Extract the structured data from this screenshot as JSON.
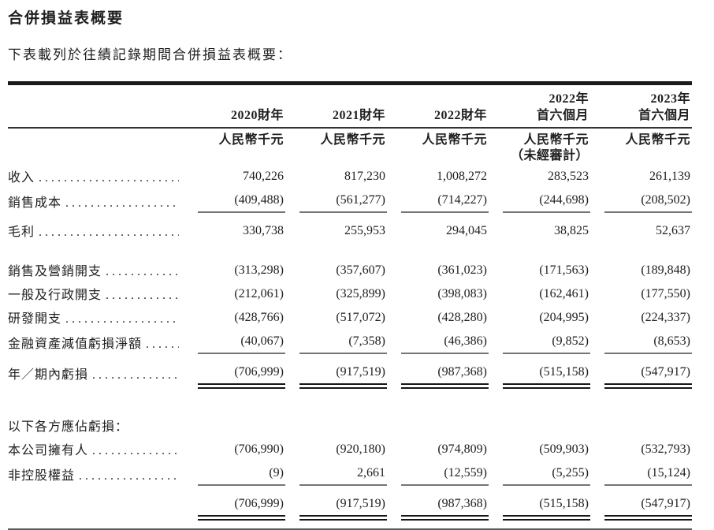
{
  "page": {
    "title": "合併損益表概要",
    "intro": "下表載列於往績記錄期間合併損益表概要："
  },
  "table": {
    "leader_dots": ". . . . . . . . . . . . . . . . . . . . . . . . . . . . . . . . . . . .",
    "columns": [
      {
        "line1": "",
        "line2": "2020財年",
        "unit": "人民幣千元",
        "note": ""
      },
      {
        "line1": "",
        "line2": "2021財年",
        "unit": "人民幣千元",
        "note": ""
      },
      {
        "line1": "",
        "line2": "2022財年",
        "unit": "人民幣千元",
        "note": ""
      },
      {
        "line1": "2022年",
        "line2": "首六個月",
        "unit": "人民幣千元",
        "note": "（未經審計）"
      },
      {
        "line1": "2023年",
        "line2": "首六個月",
        "unit": "人民幣千元",
        "note": ""
      }
    ],
    "rows": [
      {
        "label": "收入",
        "values": [
          "740,226",
          "817,230",
          "1,008,272",
          "283,523",
          "261,139"
        ]
      },
      {
        "label": "銷售成本",
        "values": [
          "(409,488)",
          "(561,277)",
          "(714,227)",
          "(244,698)",
          "(208,502)"
        ]
      },
      {
        "label": "毛利",
        "values": [
          "330,738",
          "255,953",
          "294,045",
          "38,825",
          "52,637"
        ]
      },
      {
        "label": "銷售及營銷開支",
        "values": [
          "(313,298)",
          "(357,607)",
          "(361,023)",
          "(171,563)",
          "(189,848)"
        ]
      },
      {
        "label": "一般及行政開支",
        "values": [
          "(212,061)",
          "(325,899)",
          "(398,083)",
          "(162,461)",
          "(177,550)"
        ]
      },
      {
        "label": "研發開支",
        "values": [
          "(428,766)",
          "(517,072)",
          "(428,280)",
          "(204,995)",
          "(224,337)"
        ]
      },
      {
        "label": "金融資產減值虧損淨額",
        "values": [
          "(40,067)",
          "(7,358)",
          "(46,386)",
          "(9,852)",
          "(8,653)"
        ]
      },
      {
        "label": "年／期內虧損",
        "values": [
          "(706,999)",
          "(917,519)",
          "(987,368)",
          "(515,158)",
          "(547,917)"
        ]
      },
      {
        "label": "以下各方應佔虧損："
      },
      {
        "label": "本公司擁有人",
        "values": [
          "(706,990)",
          "(920,180)",
          "(974,809)",
          "(509,903)",
          "(532,793)"
        ]
      },
      {
        "label": "非控股權益",
        "values": [
          "(9)",
          "2,661",
          "(12,559)",
          "(5,255)",
          "(15,124)"
        ]
      },
      {
        "label": "",
        "values": [
          "(706,999)",
          "(917,519)",
          "(987,368)",
          "(515,158)",
          "(547,917)"
        ]
      }
    ],
    "colors": {
      "text": "#1f1f1f",
      "rule_heavy": "#1b1b1b",
      "rule_light": "#757575"
    }
  }
}
